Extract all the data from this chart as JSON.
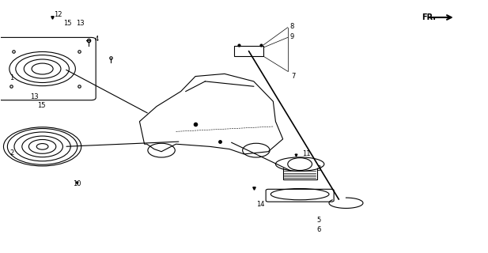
{
  "bg_color": "#ffffff",
  "line_color": "#000000",
  "fig_width": 6.17,
  "fig_height": 3.2,
  "dpi": 100
}
